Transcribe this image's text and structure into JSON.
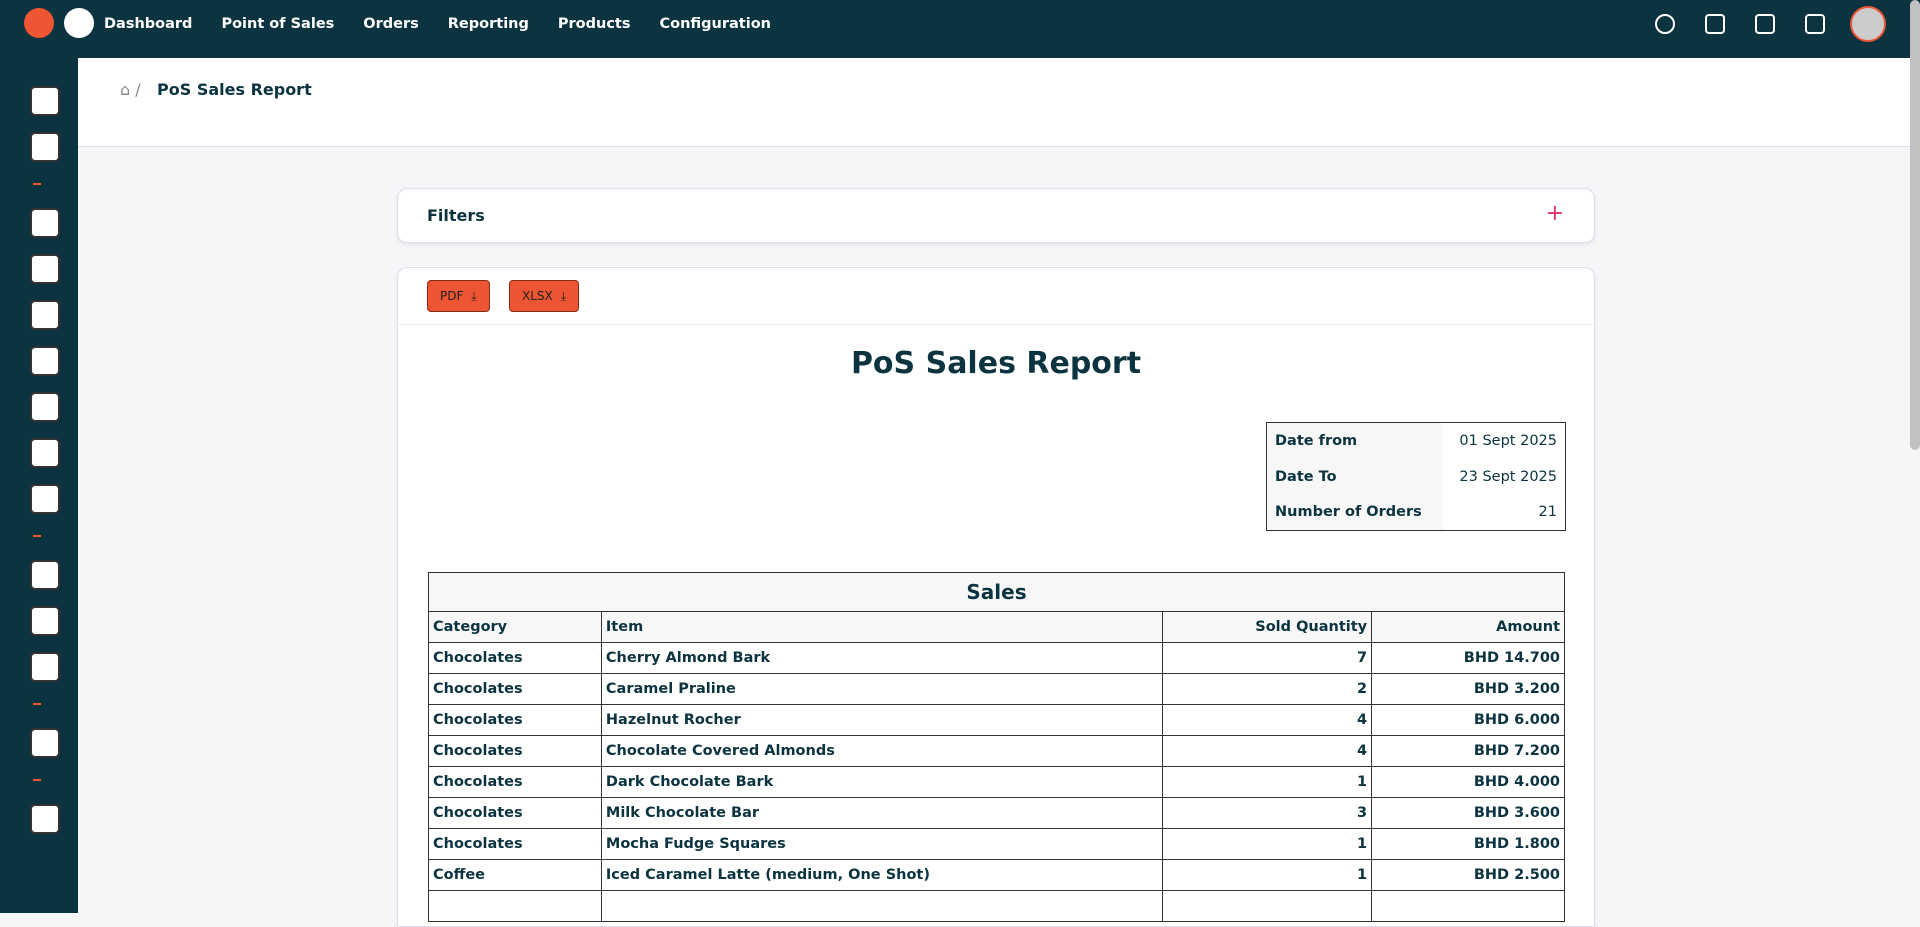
{
  "nav": {
    "items": [
      "Dashboard",
      "Point of Sales",
      "Orders",
      "Reporting",
      "Products",
      "Configuration"
    ]
  },
  "breadcrumb": {
    "current": "PoS Sales Report"
  },
  "filters": {
    "title": "Filters"
  },
  "buttons": {
    "pdf": "PDF",
    "xlsx": "XLSX"
  },
  "report": {
    "title": "PoS Sales Report",
    "info": [
      [
        "Date from",
        "01 Sept 2025"
      ],
      [
        "Date To",
        "23 Sept 2025"
      ],
      [
        "Number of Orders",
        21
      ]
    ],
    "sales": {
      "title": "Sales",
      "columns": [
        "Category",
        "Item",
        "Sold Quantity",
        "Amount"
      ],
      "rows": [
        [
          "Chocolates",
          "Cherry Almond Bark",
          7,
          "BHD 14.700"
        ],
        [
          "Chocolates",
          "Caramel Praline",
          2,
          "BHD 3.200"
        ],
        [
          "Chocolates",
          "Hazelnut Rocher",
          4,
          "BHD 6.000"
        ],
        [
          "Chocolates",
          "Chocolate Covered Almonds",
          4,
          "BHD 7.200"
        ],
        [
          "Chocolates",
          "Dark Chocolate Bark",
          1,
          "BHD 4.000"
        ],
        [
          "Chocolates",
          "Milk Chocolate Bar",
          3,
          "BHD 3.600"
        ],
        [
          "Chocolates",
          "Mocha Fudge Squares",
          1,
          "BHD 1.800"
        ],
        [
          "Coffee",
          "Iced Caramel Latte (medium, One Shot)",
          1,
          "BHD 2.500"
        ]
      ]
    }
  }
}
